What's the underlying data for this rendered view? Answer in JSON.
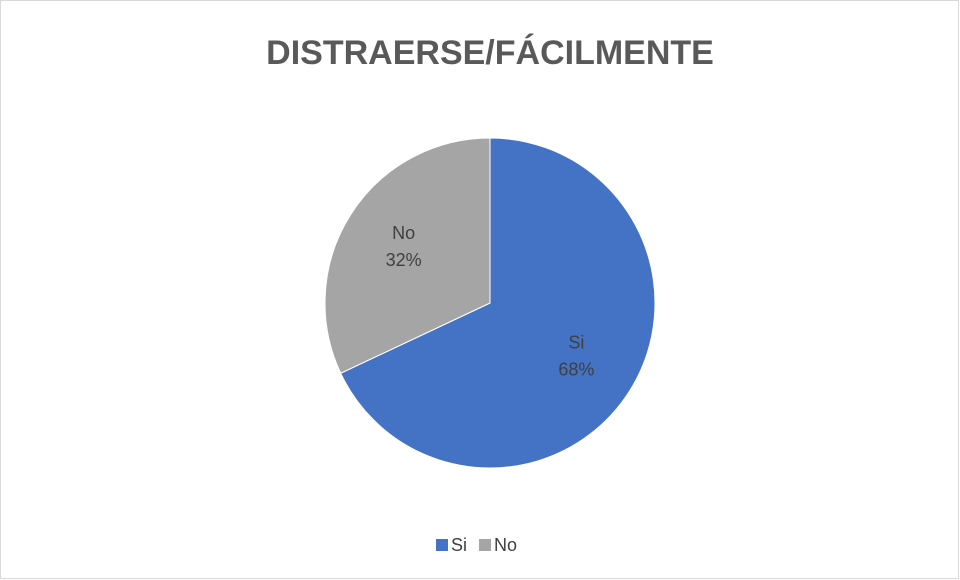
{
  "chart_data": {
    "type": "pie",
    "title": "DISTRAERSE/FÁCILMENTE",
    "categories": [
      "Si",
      "No"
    ],
    "values": [
      68,
      32
    ],
    "value_labels": [
      "68%",
      "32%"
    ],
    "colors": [
      "#4472c4",
      "#a5a5a5"
    ],
    "legend": "bottom"
  }
}
